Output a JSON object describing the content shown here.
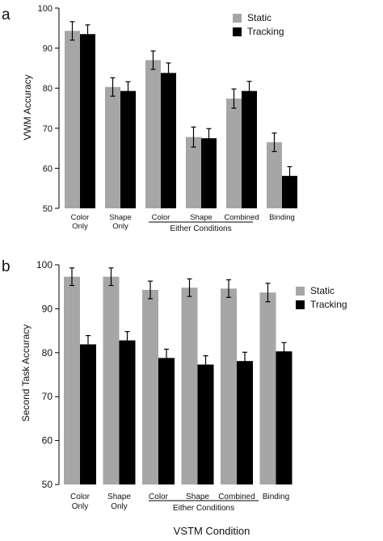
{
  "colors": {
    "static": "#a6a6a6",
    "tracking": "#000000",
    "axis": "#000000"
  },
  "chart_data": [
    {
      "type": "bar",
      "panel_label": "a",
      "ylabel": "VWM Accuracy",
      "ylim": [
        50,
        100
      ],
      "yticks": [
        "50",
        "60",
        "70",
        "80",
        "90",
        "100"
      ],
      "categories": [
        {
          "lines": [
            "Color",
            "Only"
          ]
        },
        {
          "lines": [
            "Shape",
            "Only"
          ]
        },
        {
          "lines": [
            "Color"
          ]
        },
        {
          "lines": [
            "Shape"
          ]
        },
        {
          "lines": [
            "Combined"
          ]
        },
        {
          "lines": [
            "Binding"
          ]
        }
      ],
      "group_label": "Either Conditions",
      "series": [
        {
          "name": "Static",
          "values": [
            94.3,
            80.3,
            87.0,
            67.8,
            77.4,
            66.5
          ],
          "errors": [
            2.3,
            2.3,
            2.3,
            2.5,
            2.4,
            2.3
          ]
        },
        {
          "name": "Tracking",
          "values": [
            93.5,
            79.3,
            83.8,
            67.5,
            79.3,
            58.1
          ],
          "errors": [
            2.3,
            2.3,
            2.5,
            2.4,
            2.4,
            2.3
          ]
        }
      ],
      "legend": "top-right"
    },
    {
      "type": "bar",
      "panel_label": "b",
      "ylabel": "Second Task Accuracy",
      "xlabel": "VSTM Condition",
      "ylim": [
        50,
        100
      ],
      "yticks": [
        "50",
        "60",
        "70",
        "80",
        "90",
        "100"
      ],
      "categories": [
        {
          "lines": [
            "Color",
            "Only"
          ]
        },
        {
          "lines": [
            "Shape",
            "Only"
          ]
        },
        {
          "lines": [
            "Color"
          ]
        },
        {
          "lines": [
            "Shape"
          ]
        },
        {
          "lines": [
            "Combined"
          ]
        },
        {
          "lines": [
            "Binding"
          ]
        }
      ],
      "group_label": "Either Conditions",
      "series": [
        {
          "name": "Static",
          "values": [
            97.3,
            97.3,
            94.3,
            94.8,
            94.6,
            93.7
          ],
          "errors": [
            2.0,
            2.0,
            2.0,
            2.0,
            2.0,
            2.1
          ]
        },
        {
          "name": "Tracking",
          "values": [
            81.9,
            82.8,
            78.8,
            77.3,
            78.1,
            80.3
          ],
          "errors": [
            2.0,
            2.0,
            2.0,
            2.0,
            2.0,
            2.0
          ]
        }
      ],
      "legend": "top-right"
    }
  ]
}
